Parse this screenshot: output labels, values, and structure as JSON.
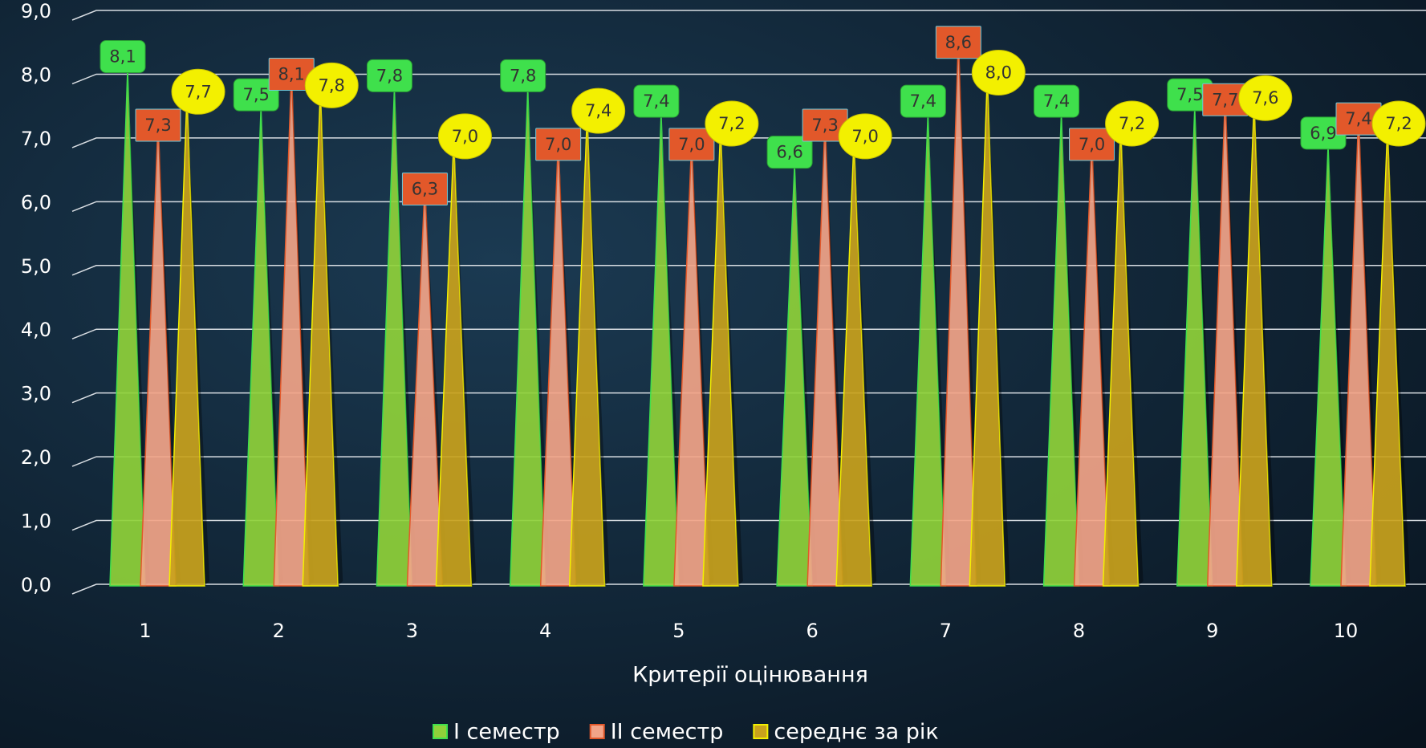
{
  "chart_data": {
    "type": "bar",
    "x_label": "Критерії оцінювання",
    "categories": [
      "1",
      "2",
      "3",
      "4",
      "5",
      "6",
      "7",
      "8",
      "9",
      "10"
    ],
    "series": [
      {
        "name": "І семестр",
        "color": "#8fd13a",
        "label_color": "#3fe04c",
        "values": [
          8.1,
          7.5,
          7.8,
          7.8,
          7.4,
          6.6,
          7.4,
          7.4,
          7.5,
          6.9
        ],
        "value_labels": [
          "8,1",
          "7,5",
          "7,8",
          "7,8",
          "7,4",
          "6,6",
          "7,4",
          "7,4",
          "7,5",
          "6,9"
        ]
      },
      {
        "name": "ІІ семестр",
        "color": "#f2a488",
        "label_color": "#e2582a",
        "values": [
          7.3,
          8.1,
          6.3,
          7.0,
          7.0,
          7.3,
          8.6,
          7.0,
          7.7,
          7.4
        ],
        "value_labels": [
          "7,3",
          "8,1",
          "6,3",
          "7,0",
          "7,0",
          "7,3",
          "8,6",
          "7,0",
          "7,7",
          "7,4"
        ]
      },
      {
        "name": "середнє за рік",
        "color": "#c9a21c",
        "label_color": "#f3f000",
        "values": [
          7.7,
          7.8,
          7.0,
          7.4,
          7.2,
          7.0,
          8.0,
          7.2,
          7.6,
          7.2
        ],
        "value_labels": [
          "7,7",
          "7,8",
          "7,0",
          "7,4",
          "7,2",
          "7,0",
          "8,0",
          "7,2",
          "7,6",
          "7,2"
        ]
      }
    ],
    "ylim": [
      0,
      9
    ],
    "yticks": [
      {
        "value": 0,
        "label": "0,0"
      },
      {
        "value": 1,
        "label": "1,0"
      },
      {
        "value": 2,
        "label": "2,0"
      },
      {
        "value": 3,
        "label": "3,0"
      },
      {
        "value": 4,
        "label": "4,0"
      },
      {
        "value": 5,
        "label": "5,0"
      },
      {
        "value": 6,
        "label": "6,0"
      },
      {
        "value": 7,
        "label": "7,0"
      },
      {
        "value": 8,
        "label": "8,0"
      },
      {
        "value": 9,
        "label": "9,0"
      }
    ],
    "grid": true,
    "legend": "bottom"
  }
}
